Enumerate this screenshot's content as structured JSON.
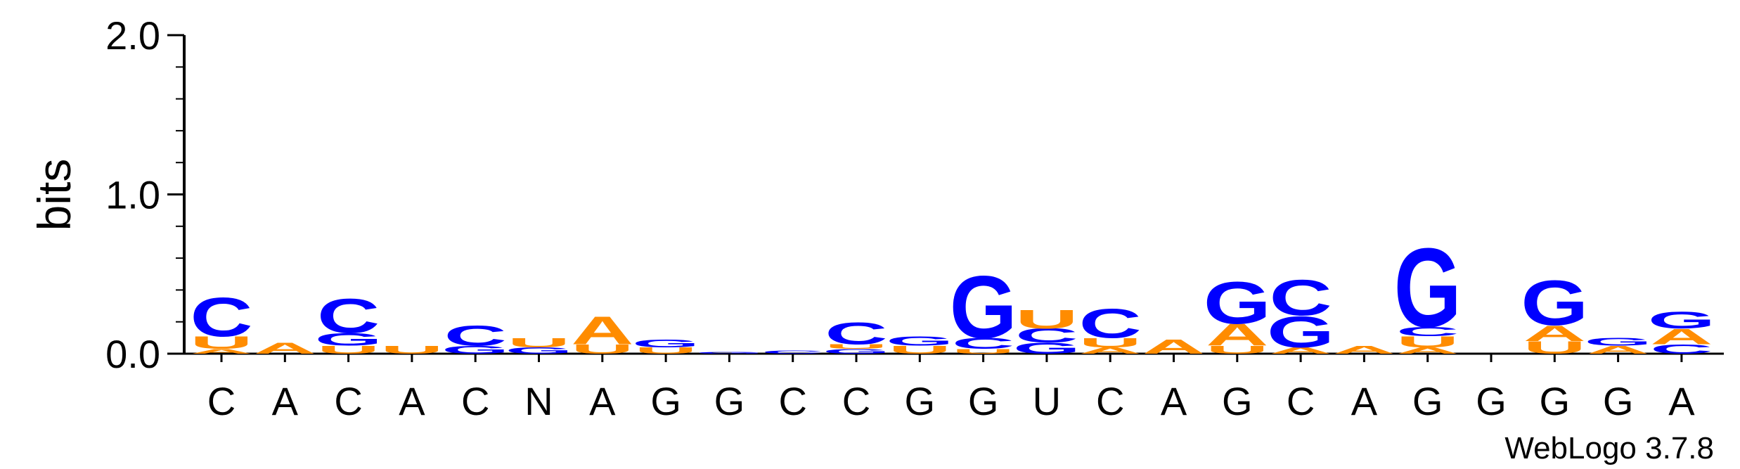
{
  "chart_data": {
    "type": "sequence-logo",
    "ylabel": "bits",
    "ylim": [
      0,
      2.0
    ],
    "yticks": [
      "0.0",
      "1.0",
      "2.0"
    ],
    "footer": "WebLogo 3.7.8",
    "colors": {
      "A": "#ff8c00",
      "U": "#ff8c00",
      "C": "#0000ff",
      "G": "#0000ff"
    },
    "positions": [
      {
        "label": "C",
        "stack": [
          [
            "A",
            0.03
          ],
          [
            "U",
            0.08
          ],
          [
            "C",
            0.25
          ]
        ]
      },
      {
        "label": "A",
        "stack": [
          [
            "A",
            0.07
          ]
        ]
      },
      {
        "label": "C",
        "stack": [
          [
            "U",
            0.05
          ],
          [
            "G",
            0.08
          ],
          [
            "C",
            0.22
          ]
        ]
      },
      {
        "label": "A",
        "stack": [
          [
            "U",
            0.05
          ]
        ]
      },
      {
        "label": "C",
        "stack": [
          [
            "G",
            0.05
          ],
          [
            "C",
            0.13
          ]
        ]
      },
      {
        "label": "N",
        "stack": [
          [
            "G",
            0.04
          ],
          [
            "U",
            0.06
          ]
        ]
      },
      {
        "label": "A",
        "stack": [
          [
            "U",
            0.06
          ],
          [
            "A",
            0.18
          ]
        ]
      },
      {
        "label": "G",
        "stack": [
          [
            "U",
            0.04
          ],
          [
            "G",
            0.05
          ]
        ]
      },
      {
        "label": "G",
        "stack": [
          [
            "G",
            0.01
          ]
        ]
      },
      {
        "label": "C",
        "stack": [
          [
            "C",
            0.02
          ]
        ]
      },
      {
        "label": "C",
        "stack": [
          [
            "G",
            0.03
          ],
          [
            "U",
            0.03
          ],
          [
            "C",
            0.14
          ]
        ]
      },
      {
        "label": "G",
        "stack": [
          [
            "U",
            0.05
          ],
          [
            "G",
            0.06
          ]
        ]
      },
      {
        "label": "G",
        "stack": [
          [
            "U",
            0.03
          ],
          [
            "C",
            0.07
          ],
          [
            "G",
            0.4
          ]
        ]
      },
      {
        "label": "U",
        "stack": [
          [
            "G",
            0.07
          ],
          [
            "C",
            0.09
          ],
          [
            "U",
            0.12
          ]
        ]
      },
      {
        "label": "C",
        "stack": [
          [
            "A",
            0.04
          ],
          [
            "U",
            0.06
          ],
          [
            "C",
            0.19
          ]
        ]
      },
      {
        "label": "A",
        "stack": [
          [
            "A",
            0.09
          ]
        ]
      },
      {
        "label": "G",
        "stack": [
          [
            "U",
            0.05
          ],
          [
            "A",
            0.14
          ],
          [
            "G",
            0.27
          ]
        ]
      },
      {
        "label": "C",
        "stack": [
          [
            "A",
            0.04
          ],
          [
            "G",
            0.2
          ],
          [
            "C",
            0.23
          ]
        ]
      },
      {
        "label": "A",
        "stack": [
          [
            "A",
            0.05
          ]
        ]
      },
      {
        "label": "G",
        "stack": [
          [
            "A",
            0.04
          ],
          [
            "U",
            0.07
          ],
          [
            "C",
            0.06
          ],
          [
            "G",
            0.51
          ]
        ]
      },
      {
        "label": "G",
        "stack": []
      },
      {
        "label": "G",
        "stack": [
          [
            "U",
            0.08
          ],
          [
            "A",
            0.1
          ],
          [
            "G",
            0.29
          ]
        ]
      },
      {
        "label": "G",
        "stack": [
          [
            "A",
            0.05
          ],
          [
            "G",
            0.05
          ]
        ]
      },
      {
        "label": "A",
        "stack": [
          [
            "C",
            0.06
          ],
          [
            "A",
            0.1
          ],
          [
            "G",
            0.11
          ]
        ]
      }
    ]
  }
}
